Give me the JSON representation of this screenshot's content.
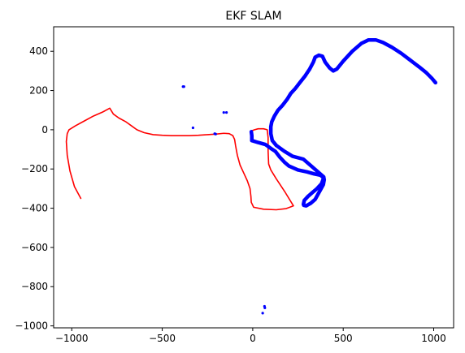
{
  "chart_data": {
    "type": "line",
    "title": "EKF SLAM",
    "xlabel": "",
    "ylabel": "",
    "xlim": [
      -1100,
      1110
    ],
    "ylim": [
      -1010,
      525
    ],
    "grid": false,
    "x_ticks": [
      -1000,
      -500,
      0,
      500,
      1000
    ],
    "y_ticks": [
      -1000,
      -800,
      -600,
      -400,
      -200,
      0,
      200,
      400
    ],
    "colors": {
      "estimated_path": "#ff0000",
      "true_path": "#0000ff",
      "landmarks": "#0000ff"
    },
    "series": [
      {
        "key": "estimated_path",
        "style": "line",
        "color": "#ff0000",
        "points": [
          [
            -950,
            -350
          ],
          [
            -985,
            -290
          ],
          [
            -1010,
            -210
          ],
          [
            -1025,
            -130
          ],
          [
            -1030,
            -60
          ],
          [
            -1025,
            -20
          ],
          [
            -1015,
            0
          ],
          [
            -980,
            20
          ],
          [
            -930,
            45
          ],
          [
            -880,
            70
          ],
          [
            -830,
            90
          ],
          [
            -790,
            110
          ],
          [
            -770,
            80
          ],
          [
            -740,
            60
          ],
          [
            -700,
            40
          ],
          [
            -670,
            20
          ],
          [
            -640,
            0
          ],
          [
            -600,
            -15
          ],
          [
            -550,
            -25
          ],
          [
            -500,
            -28
          ],
          [
            -450,
            -30
          ],
          [
            -400,
            -30
          ],
          [
            -350,
            -30
          ],
          [
            -300,
            -28
          ],
          [
            -250,
            -25
          ],
          [
            -200,
            -22
          ],
          [
            -160,
            -18
          ],
          [
            -130,
            -20
          ],
          [
            -110,
            -30
          ],
          [
            -100,
            -50
          ],
          [
            -95,
            -80
          ],
          [
            -85,
            -130
          ],
          [
            -70,
            -180
          ],
          [
            -50,
            -220
          ],
          [
            -30,
            -260
          ],
          [
            -15,
            -300
          ],
          [
            -10,
            -340
          ],
          [
            -8,
            -370
          ],
          [
            5,
            -395
          ],
          [
            60,
            -405
          ],
          [
            130,
            -408
          ],
          [
            185,
            -402
          ],
          [
            225,
            -388
          ],
          [
            180,
            -320
          ],
          [
            130,
            -250
          ],
          [
            100,
            -205
          ],
          [
            88,
            -175
          ],
          [
            85,
            -110
          ],
          [
            85,
            -40
          ],
          [
            80,
            0
          ],
          [
            60,
            5
          ],
          [
            30,
            5
          ],
          [
            10,
            0
          ],
          [
            -5,
            -5
          ]
        ]
      },
      {
        "key": "true_path",
        "style": "thick-line",
        "color": "#0000ff",
        "points": [
          [
            -5,
            -55
          ],
          [
            30,
            -65
          ],
          [
            70,
            -75
          ],
          [
            100,
            -95
          ],
          [
            125,
            -110
          ],
          [
            150,
            -140
          ],
          [
            175,
            -165
          ],
          [
            200,
            -185
          ],
          [
            250,
            -205
          ],
          [
            300,
            -215
          ],
          [
            340,
            -225
          ],
          [
            375,
            -232
          ],
          [
            392,
            -245
          ],
          [
            380,
            -275
          ],
          [
            355,
            -300
          ],
          [
            330,
            -320
          ],
          [
            305,
            -340
          ],
          [
            295,
            -350
          ],
          [
            285,
            -360
          ],
          [
            280,
            -380
          ],
          [
            282,
            -385
          ],
          [
            295,
            -388
          ],
          [
            320,
            -375
          ],
          [
            345,
            -355
          ],
          [
            360,
            -330
          ],
          [
            375,
            -305
          ],
          [
            390,
            -280
          ],
          [
            395,
            -255
          ],
          [
            392,
            -240
          ],
          [
            280,
            -150
          ],
          [
            220,
            -135
          ],
          [
            175,
            -110
          ],
          [
            130,
            -80
          ],
          [
            108,
            -55
          ],
          [
            100,
            -20
          ],
          [
            100,
            15
          ],
          [
            105,
            40
          ],
          [
            120,
            70
          ],
          [
            140,
            100
          ],
          [
            165,
            125
          ],
          [
            190,
            155
          ],
          [
            210,
            185
          ],
          [
            235,
            210
          ],
          [
            260,
            240
          ],
          [
            290,
            275
          ],
          [
            315,
            310
          ],
          [
            335,
            345
          ],
          [
            345,
            370
          ],
          [
            365,
            380
          ],
          [
            385,
            375
          ],
          [
            400,
            345
          ],
          [
            425,
            315
          ],
          [
            445,
            300
          ],
          [
            465,
            310
          ],
          [
            500,
            350
          ],
          [
            550,
            400
          ],
          [
            600,
            440
          ],
          [
            640,
            458
          ],
          [
            680,
            458
          ],
          [
            720,
            445
          ],
          [
            770,
            420
          ],
          [
            820,
            390
          ],
          [
            870,
            355
          ],
          [
            920,
            320
          ],
          [
            960,
            290
          ],
          [
            990,
            262
          ],
          [
            1010,
            240
          ]
        ]
      },
      {
        "key": "true_path_start",
        "style": "thick-line",
        "color": "#0000ff",
        "points": [
          [
            -8,
            -10
          ],
          [
            -5,
            -30
          ],
          [
            -5,
            -55
          ]
        ]
      }
    ],
    "landmarks": [
      [
        -385,
        220
      ],
      [
        -380,
        220
      ],
      [
        -330,
        10
      ],
      [
        -160,
        88
      ],
      [
        -145,
        88
      ],
      [
        -210,
        -20
      ],
      [
        -205,
        -22
      ],
      [
        65,
        -900
      ],
      [
        67,
        -908
      ],
      [
        55,
        -935
      ]
    ]
  }
}
